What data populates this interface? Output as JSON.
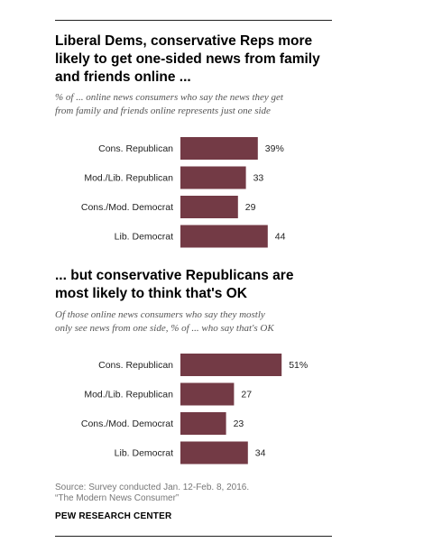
{
  "panel1": {
    "title_lines": [
      "Liberal Dems, conservative Reps more",
      "likely to get one-sided news from family",
      "and friends online ..."
    ],
    "subtitle_lines": [
      "% of ... online news consumers who say the news they get",
      "from family and friends online represents just one side"
    ]
  },
  "panel2": {
    "title_lines": [
      "... but conservative Republicans are",
      "most likely to think that's OK"
    ],
    "subtitle_lines": [
      "Of those online news consumers who say they mostly",
      "only  see news from one side, % of ... who say that's OK"
    ]
  },
  "chart_data": [
    {
      "type": "bar",
      "orientation": "horizontal",
      "categories": [
        "Cons. Republican",
        "Mod./Lib. Republican",
        "Cons./Mod. Democrat",
        "Lib. Democrat"
      ],
      "values": [
        39,
        33,
        29,
        44
      ],
      "value_labels": [
        "39%",
        "33",
        "29",
        "44"
      ],
      "color": "#733a45"
    },
    {
      "type": "bar",
      "orientation": "horizontal",
      "categories": [
        "Cons. Republican",
        "Mod./Lib. Republican",
        "Cons./Mod. Democrat",
        "Lib. Democrat"
      ],
      "values": [
        51,
        27,
        23,
        34
      ],
      "value_labels": [
        "51%",
        "27",
        "23",
        "34"
      ],
      "color": "#733a45"
    }
  ],
  "footer": {
    "source_line1": "Source: Survey conducted Jan. 12-Feb. 8, 2016.",
    "source_line2": "“The Modern News Consumer”",
    "brand": "PEW RESEARCH CENTER"
  }
}
